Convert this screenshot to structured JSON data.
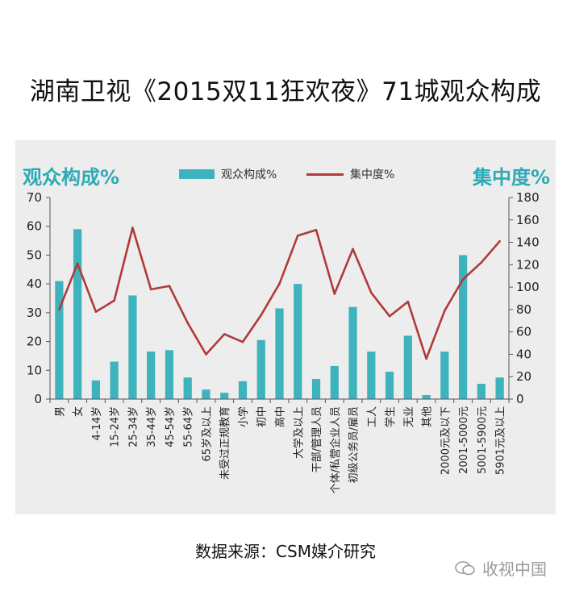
{
  "title": "湖南卫视《2015双11狂欢夜》71城观众构成",
  "source": "数据来源：CSM媒介研究",
  "watermark": "收视中国",
  "chart_data": {
    "type": "bar",
    "categories": [
      "男",
      "女",
      "4-14岁",
      "15-24岁",
      "25-34岁",
      "35-44岁",
      "45-54岁",
      "55-64岁",
      "65岁及以上",
      "未受过正规教育",
      "小学",
      "初中",
      "高中",
      "大学及以上",
      "干部/管理人员",
      "个体/私营企业人员",
      "初级公务员/雇员",
      "工人",
      "学生",
      "无业",
      "其他",
      "2000元及以下",
      "2001-5000元",
      "5001-5900元",
      "5901元及以上"
    ],
    "series": [
      {
        "name": "观众构成%",
        "type": "bar",
        "axis": "left",
        "color": "#3fb3bd",
        "values": [
          41,
          59,
          6.5,
          13,
          36,
          16.5,
          17,
          7.5,
          3.3,
          2.2,
          6.2,
          20.5,
          31.5,
          40,
          7,
          11.5,
          32,
          16.5,
          9.5,
          22,
          1.4,
          16.5,
          50,
          5.3,
          7.5
        ]
      },
      {
        "name": "集中度%",
        "type": "line",
        "axis": "right",
        "color": "#b03a3a",
        "values": [
          80,
          121,
          78,
          88,
          153,
          98,
          101,
          68,
          40,
          58,
          51,
          75,
          103,
          146,
          151,
          94,
          134,
          95,
          74,
          87,
          36,
          79,
          107,
          122,
          141
        ]
      }
    ],
    "yleft": {
      "label": "观众构成%",
      "min": 0,
      "max": 70,
      "ticks": [
        0,
        10,
        20,
        30,
        40,
        50,
        60,
        70
      ]
    },
    "yright": {
      "label": "集中度%",
      "min": 0,
      "max": 180,
      "ticks": [
        0,
        20,
        40,
        60,
        80,
        100,
        120,
        140,
        160,
        180
      ]
    },
    "legend": "top-center",
    "grid": false
  },
  "colors": {
    "bar": "#3fb3bd",
    "line": "#b03a3a",
    "accent": "#2eaab4",
    "panel": "#ededed"
  }
}
